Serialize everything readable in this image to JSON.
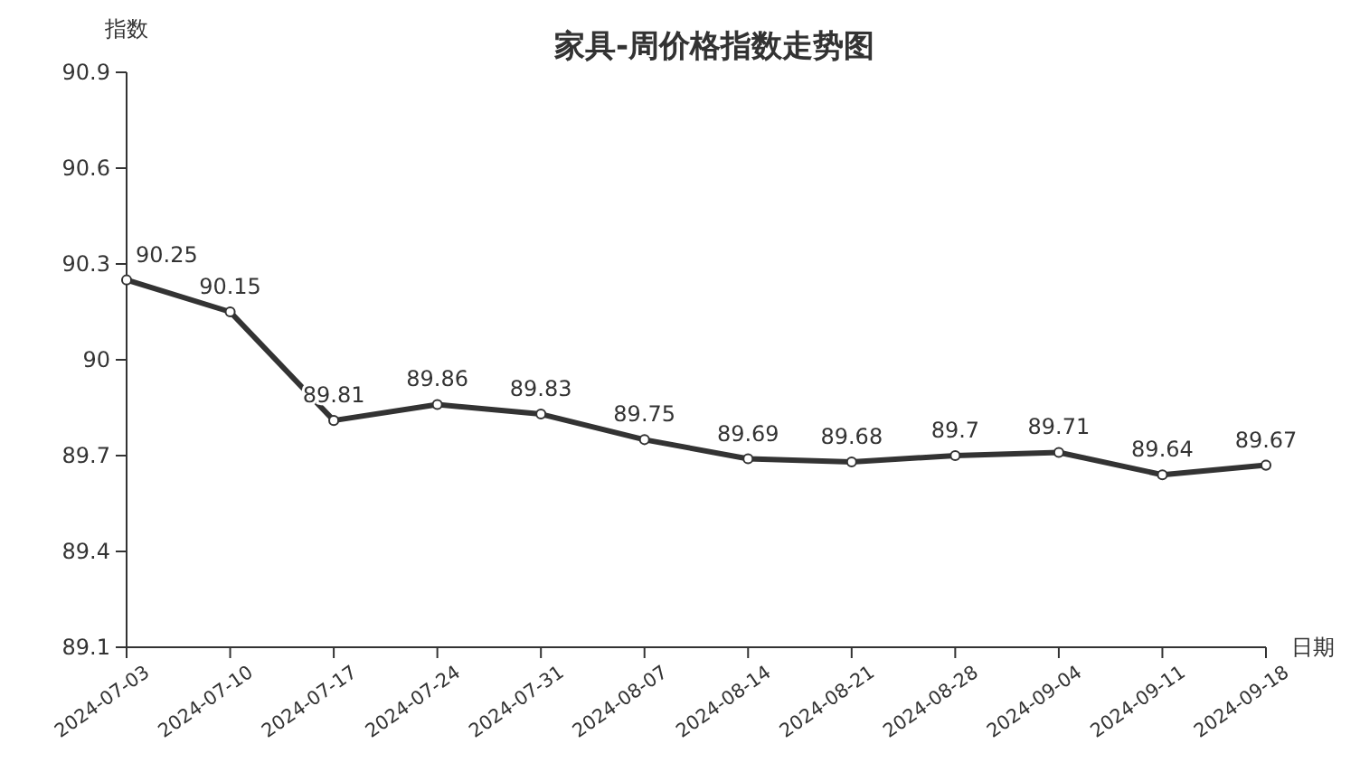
{
  "chart_data": {
    "type": "line",
    "title": "家具-周价格指数走势图",
    "xlabel": "日期",
    "ylabel": "指数",
    "categories": [
      "2024-07-03",
      "2024-07-10",
      "2024-07-17",
      "2024-07-24",
      "2024-07-31",
      "2024-08-07",
      "2024-08-14",
      "2024-08-21",
      "2024-08-28",
      "2024-09-04",
      "2024-09-11",
      "2024-09-18"
    ],
    "series": [
      {
        "color": "#333333",
        "values": [
          90.25,
          90.15,
          89.81,
          89.86,
          89.83,
          89.75,
          89.69,
          89.68,
          89.7,
          89.71,
          89.64,
          89.67
        ]
      }
    ],
    "ylim": [
      89.1,
      90.9
    ],
    "yticks": [
      89.1,
      89.4,
      89.7,
      90,
      90.3,
      90.6,
      90.9
    ],
    "data_labels": true,
    "marker": "circle",
    "line_style": "solid",
    "grid": false
  }
}
